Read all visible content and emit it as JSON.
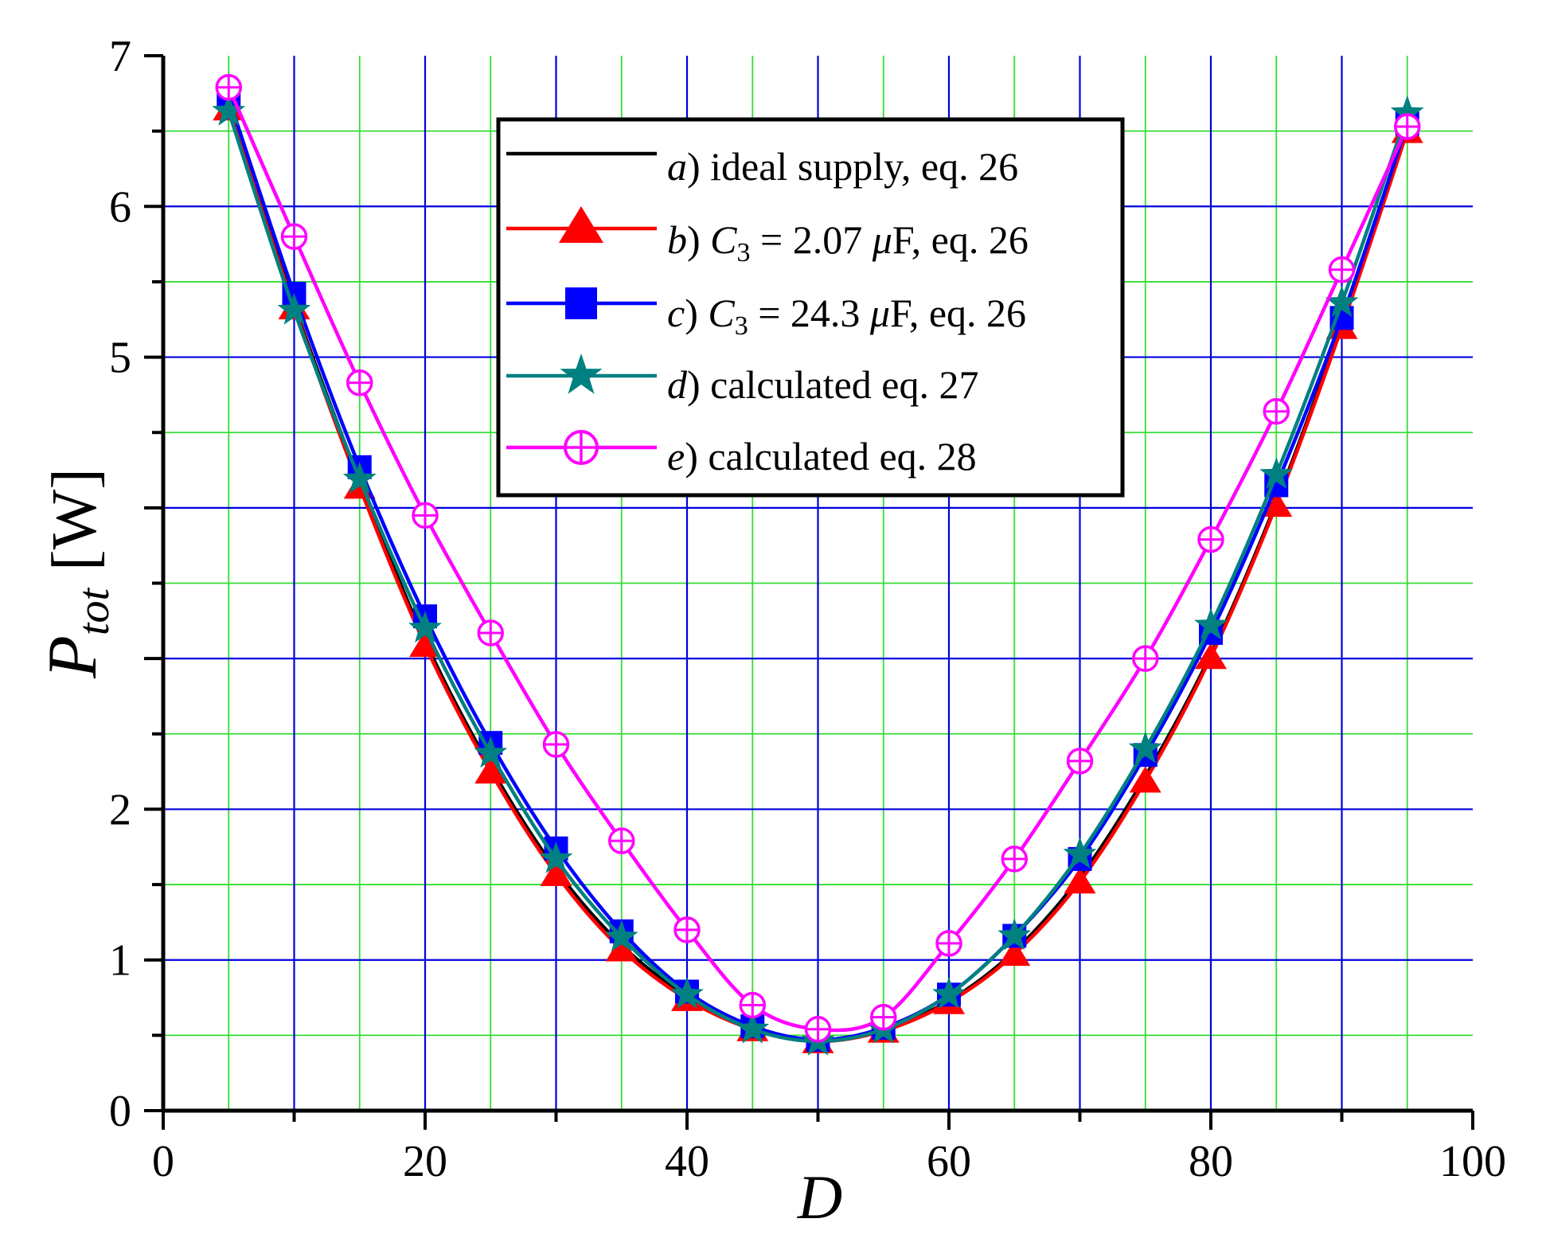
{
  "chart_data": {
    "type": "line",
    "title": "",
    "xlabel": "D",
    "ylabel": {
      "main": "P",
      "sub": "tot",
      "unit": "[W]"
    },
    "xlim": [
      0,
      100
    ],
    "ylim": [
      0,
      7
    ],
    "xticks": [
      0,
      20,
      40,
      60,
      80,
      100
    ],
    "yticks": [
      0,
      1,
      2,
      5,
      6,
      7
    ],
    "grid": true,
    "legend_position": "top-center",
    "colors": {
      "major_grid": "#0000dd",
      "minor_grid": "#33dd33",
      "a": "#000000",
      "b": "#ff0000",
      "c": "#0000ff",
      "d": "#008080",
      "e": "#ff00ff"
    },
    "x": [
      5,
      10,
      15,
      20,
      25,
      30,
      35,
      40,
      45,
      50,
      55,
      60,
      65,
      70,
      75,
      80,
      85,
      90,
      95
    ],
    "series": [
      {
        "id": "a",
        "name": "ideal supply, eq. 26",
        "legend": {
          "letter": "a",
          "text": ") ideal supply, eq. 26"
        },
        "marker": "none",
        "values": [
          6.68,
          5.35,
          4.18,
          3.12,
          2.28,
          1.6,
          1.1,
          0.76,
          0.55,
          0.47,
          0.54,
          0.73,
          1.06,
          1.55,
          2.22,
          3.03,
          4.04,
          5.22,
          6.5
        ]
      },
      {
        "id": "b",
        "name": "C3 = 2.07 μF, eq. 26",
        "legend": {
          "letter": "b",
          "pre": ") ",
          "var": "C",
          "sub": "3",
          "value": " = 2.07 ",
          "mu": "μ",
          "unit": "F, eq. 26"
        },
        "marker": "triangle",
        "values": [
          6.65,
          5.33,
          4.14,
          3.09,
          2.25,
          1.57,
          1.07,
          0.74,
          0.54,
          0.46,
          0.53,
          0.72,
          1.04,
          1.52,
          2.19,
          3.01,
          4.02,
          5.2,
          6.5
        ]
      },
      {
        "id": "c",
        "name": "C3 = 24.3 μF, eq. 26",
        "legend": {
          "letter": "c",
          "pre": ") ",
          "var": "C",
          "sub": "3",
          "value": " = 24.3 ",
          "mu": "μ",
          "unit": "F, eq. 26"
        },
        "marker": "square",
        "values": [
          6.72,
          5.42,
          4.27,
          3.28,
          2.44,
          1.74,
          1.19,
          0.79,
          0.56,
          0.47,
          0.55,
          0.77,
          1.16,
          1.67,
          2.36,
          3.17,
          4.15,
          5.26,
          6.55
        ]
      },
      {
        "id": "d",
        "name": "calculated eq. 27",
        "legend": {
          "letter": "d",
          "text": ") calculated eq. 27"
        },
        "marker": "star",
        "values": [
          6.63,
          5.31,
          4.19,
          3.2,
          2.37,
          1.67,
          1.15,
          0.77,
          0.54,
          0.46,
          0.54,
          0.77,
          1.16,
          1.7,
          2.4,
          3.22,
          4.22,
          5.36,
          6.62
        ]
      },
      {
        "id": "e",
        "name": "calculated eq. 28",
        "legend": {
          "letter": "e",
          "text": ") calculated eq. 28"
        },
        "marker": "circle-plus",
        "values": [
          6.79,
          5.8,
          4.83,
          3.95,
          3.17,
          2.43,
          1.79,
          1.2,
          0.7,
          0.54,
          0.62,
          1.11,
          1.67,
          2.32,
          3.0,
          3.79,
          4.64,
          5.58,
          6.53
        ]
      }
    ]
  }
}
